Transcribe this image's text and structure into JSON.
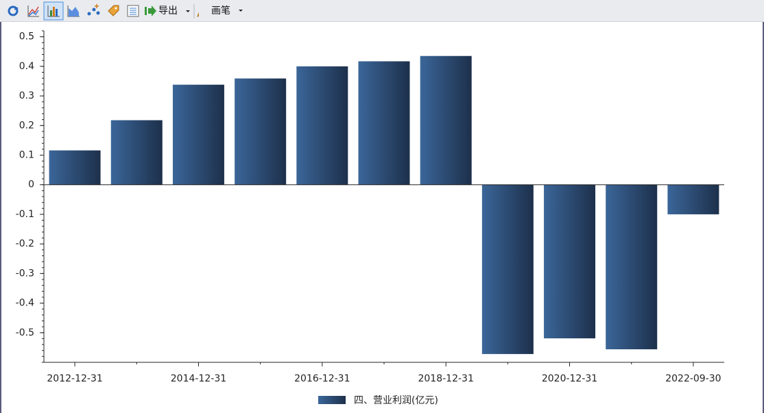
{
  "toolbar": {
    "buttons": [
      "导出",
      "画笔"
    ]
  },
  "chart_data": {
    "type": "bar",
    "categories": [
      "2012-12-31",
      null,
      "2014-12-31",
      null,
      "2016-12-31",
      null,
      "2018-12-31",
      null,
      "2020-12-31",
      null,
      "2022-09-30"
    ],
    "series": [
      {
        "name": "四、营业利润(亿元)",
        "color": "#2c4a72",
        "gradient": [
          "#3b6699",
          "#1d304b"
        ],
        "values": [
          0.116,
          0.218,
          0.338,
          0.359,
          0.4,
          0.417,
          0.435,
          -0.572,
          -0.519,
          -0.556,
          -0.1
        ]
      }
    ],
    "ylim": [
      -0.6,
      0.52
    ],
    "yticks": [
      0.5,
      0.4,
      0.3,
      0.2,
      0.1,
      0,
      -0.1,
      -0.2,
      -0.3,
      -0.4,
      -0.5
    ],
    "grid": false
  }
}
